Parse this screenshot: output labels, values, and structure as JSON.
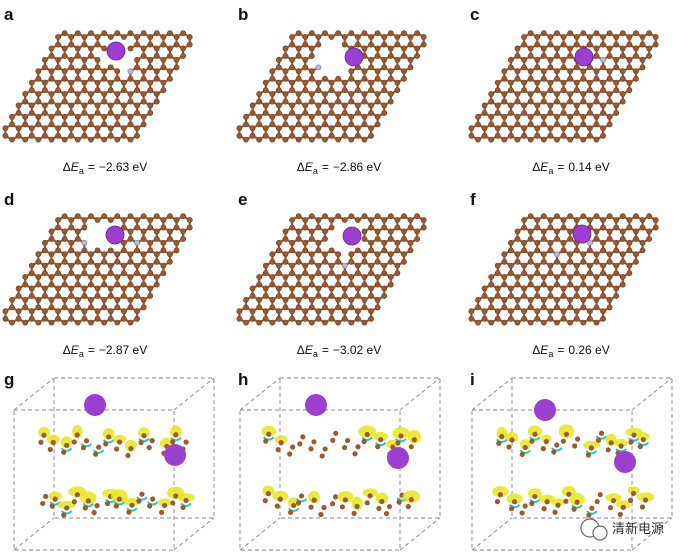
{
  "energy_symbol": {
    "delta": "Δ",
    "variable": "E",
    "subscript": "a",
    "relation": "="
  },
  "panels": [
    {
      "label": "a",
      "energy": "−2.63 eV"
    },
    {
      "label": "b",
      "energy": "−2.86 eV"
    },
    {
      "label": "c",
      "energy": "0.14 eV"
    },
    {
      "label": "d",
      "energy": "−2.87 eV"
    },
    {
      "label": "e",
      "energy": "−3.02 eV"
    },
    {
      "label": "f",
      "energy": "0.26 eV"
    },
    {
      "label": "g"
    },
    {
      "label": "h"
    },
    {
      "label": "i"
    }
  ],
  "watermark": "清新电源"
}
